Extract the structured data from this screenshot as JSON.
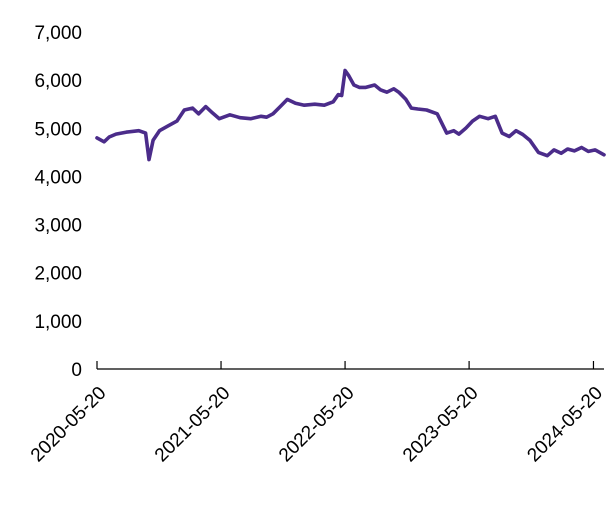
{
  "chart_data": {
    "type": "line",
    "title": "",
    "xlabel": "",
    "ylabel": "",
    "ylim": [
      0,
      7000
    ],
    "xlim": [
      "2020-05-20",
      "2024-06-20"
    ],
    "grid": false,
    "legend": "none",
    "y_ticks": [
      0,
      1000,
      2000,
      3000,
      4000,
      5000,
      6000,
      7000
    ],
    "y_tick_labels": [
      "0",
      "1,000",
      "2,000",
      "3,000",
      "4,000",
      "5,000",
      "6,000",
      "7,000"
    ],
    "x_ticks": [
      "2020-05-20",
      "2021-05-20",
      "2022-05-20",
      "2023-05-20",
      "2024-05-20"
    ],
    "x_tick_labels": [
      "2020-05-20",
      "2021-05-20",
      "2022-05-20",
      "2023-05-20",
      "2024-05-20"
    ],
    "series": [
      {
        "color": "#4b2c8a",
        "x": [
          "2020-05-20",
          "2020-06-10",
          "2020-06-25",
          "2020-07-15",
          "2020-08-15",
          "2020-09-20",
          "2020-10-10",
          "2020-10-20",
          "2020-11-01",
          "2020-11-20",
          "2020-12-15",
          "2021-01-10",
          "2021-02-01",
          "2021-02-25",
          "2021-03-15",
          "2021-04-05",
          "2021-04-25",
          "2021-05-15",
          "2021-06-15",
          "2021-07-15",
          "2021-08-15",
          "2021-09-15",
          "2021-10-01",
          "2021-10-20",
          "2021-11-10",
          "2021-12-01",
          "2021-12-25",
          "2022-01-20",
          "2022-02-20",
          "2022-03-20",
          "2022-04-15",
          "2022-04-30",
          "2022-05-10",
          "2022-05-20",
          "2022-05-30",
          "2022-06-15",
          "2022-07-01",
          "2022-07-20",
          "2022-08-15",
          "2022-09-01",
          "2022-09-20",
          "2022-10-10",
          "2022-10-25",
          "2022-11-15",
          "2022-12-01",
          "2022-12-20",
          "2023-01-15",
          "2023-02-15",
          "2023-03-15",
          "2023-04-05",
          "2023-04-20",
          "2023-05-10",
          "2023-05-30",
          "2023-06-20",
          "2023-07-15",
          "2023-08-05",
          "2023-08-25",
          "2023-09-15",
          "2023-10-05",
          "2023-10-25",
          "2023-11-15",
          "2023-12-10",
          "2024-01-05",
          "2024-01-25",
          "2024-02-15",
          "2024-03-05",
          "2024-03-25",
          "2024-04-15",
          "2024-05-05",
          "2024-05-25",
          "2024-06-20"
        ],
        "y": [
          4800,
          4720,
          4820,
          4880,
          4920,
          4950,
          4900,
          4350,
          4750,
          4950,
          5050,
          5150,
          5380,
          5420,
          5300,
          5450,
          5320,
          5200,
          5280,
          5220,
          5200,
          5250,
          5230,
          5300,
          5450,
          5600,
          5520,
          5480,
          5500,
          5480,
          5550,
          5700,
          5680,
          6200,
          6100,
          5900,
          5850,
          5850,
          5900,
          5800,
          5750,
          5820,
          5750,
          5600,
          5420,
          5400,
          5380,
          5300,
          4900,
          4950,
          4880,
          5000,
          5150,
          5250,
          5200,
          5250,
          4900,
          4830,
          4950,
          4870,
          4750,
          4500,
          4430,
          4550,
          4480,
          4570,
          4530,
          4600,
          4520,
          4550,
          4450
        ]
      }
    ]
  }
}
